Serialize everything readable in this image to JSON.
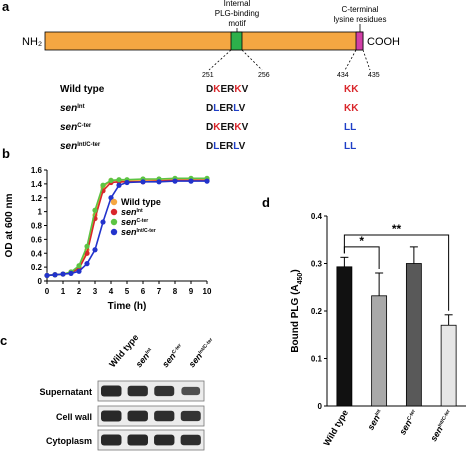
{
  "panels": {
    "a": "a",
    "b": "b",
    "c": "c",
    "d": "d"
  },
  "panel_a": {
    "nh2": "NH₂",
    "cooh": "COOH",
    "motif_line1": "Internal",
    "motif_line2": "PLG-binding",
    "motif_line3": "motif",
    "cter_line1": "C-terminal",
    "cter_line2": "lysine residues",
    "pos_251": "251",
    "pos_256": "256",
    "pos_434": "434",
    "pos_435": "435",
    "protein_color": "#f5a742",
    "motif_color": "#2db04b",
    "cter_color": "#d13fa6",
    "rows": [
      {
        "base": "Wild type",
        "sup": "",
        "seq": [
          [
            "D",
            "#111111"
          ],
          [
            "K",
            "#d9262b"
          ],
          [
            "E",
            "#111111"
          ],
          [
            "R",
            "#111111"
          ],
          [
            "K",
            "#d9262b"
          ],
          [
            "V",
            "#111111"
          ]
        ],
        "cter": [
          [
            "K",
            "#d9262b"
          ],
          [
            "K",
            "#d9262b"
          ]
        ]
      },
      {
        "base": "sen",
        "sup": "Int",
        "seq": [
          [
            "D",
            "#111111"
          ],
          [
            "L",
            "#1f3fc7"
          ],
          [
            "E",
            "#111111"
          ],
          [
            "R",
            "#111111"
          ],
          [
            "L",
            "#1f3fc7"
          ],
          [
            "V",
            "#111111"
          ]
        ],
        "cter": [
          [
            "K",
            "#d9262b"
          ],
          [
            "K",
            "#d9262b"
          ]
        ]
      },
      {
        "base": "sen",
        "sup": "C-ter",
        "seq": [
          [
            "D",
            "#111111"
          ],
          [
            "K",
            "#d9262b"
          ],
          [
            "E",
            "#111111"
          ],
          [
            "R",
            "#111111"
          ],
          [
            "K",
            "#d9262b"
          ],
          [
            "V",
            "#111111"
          ]
        ],
        "cter": [
          [
            "L",
            "#1f3fc7"
          ],
          [
            "L",
            "#1f3fc7"
          ]
        ]
      },
      {
        "base": "sen",
        "sup": "Int/C-ter",
        "seq": [
          [
            "D",
            "#111111"
          ],
          [
            "L",
            "#1f3fc7"
          ],
          [
            "E",
            "#111111"
          ],
          [
            "R",
            "#111111"
          ],
          [
            "L",
            "#1f3fc7"
          ],
          [
            "V",
            "#111111"
          ]
        ],
        "cter": [
          [
            "L",
            "#1f3fc7"
          ],
          [
            "L",
            "#1f3fc7"
          ]
        ]
      }
    ]
  },
  "chart_data": [
    {
      "type": "line",
      "xlabel": "Time (h)",
      "ylabel": "OD at 600 nm",
      "xlim": [
        0,
        10
      ],
      "ylim": [
        0,
        1.6
      ],
      "xticks": [
        0,
        1,
        2,
        3,
        4,
        5,
        6,
        7,
        8,
        9,
        10
      ],
      "yticks": [
        0,
        0.2,
        0.4,
        0.6,
        0.8,
        1.0,
        1.2,
        1.4,
        1.6
      ],
      "ytick_labels": [
        "0",
        "0.2",
        "0.4",
        "0.6",
        "0.8",
        "1",
        "1.2",
        "1.4",
        "1.6"
      ],
      "legend": "center-right",
      "series": [
        {
          "base": "Wild type",
          "sup": "",
          "color": "#f5a742",
          "x": [
            0,
            0.5,
            1,
            1.5,
            2,
            2.5,
            3,
            3.5,
            4,
            4.5,
            5,
            6,
            7,
            8,
            9,
            10
          ],
          "y": [
            0.08,
            0.09,
            0.1,
            0.13,
            0.2,
            0.45,
            0.95,
            1.35,
            1.45,
            1.45,
            1.45,
            1.45,
            1.46,
            1.47,
            1.47,
            1.47
          ]
        },
        {
          "base": "sen",
          "sup": "Int",
          "color": "#d9262b",
          "x": [
            0,
            0.5,
            1,
            1.5,
            2,
            2.5,
            3,
            3.5,
            4,
            4.5,
            5,
            6,
            7,
            8,
            9,
            10
          ],
          "y": [
            0.08,
            0.09,
            0.1,
            0.12,
            0.18,
            0.4,
            0.9,
            1.3,
            1.42,
            1.43,
            1.43,
            1.43,
            1.44,
            1.45,
            1.45,
            1.45
          ]
        },
        {
          "base": "sen",
          "sup": "C-ter",
          "color": "#5cc443",
          "x": [
            0,
            0.5,
            1,
            1.5,
            2,
            2.5,
            3,
            3.5,
            4,
            4.5,
            5,
            6,
            7,
            8,
            9,
            10
          ],
          "y": [
            0.08,
            0.09,
            0.1,
            0.13,
            0.22,
            0.5,
            1.02,
            1.38,
            1.45,
            1.46,
            1.46,
            1.47,
            1.47,
            1.48,
            1.48,
            1.48
          ]
        },
        {
          "base": "sen",
          "sup": "Int/C-ter",
          "color": "#2233cc",
          "x": [
            0,
            0.5,
            1,
            1.5,
            2,
            2.5,
            3,
            3.5,
            4,
            4.5,
            5,
            6,
            7,
            8,
            9,
            10
          ],
          "y": [
            0.08,
            0.09,
            0.1,
            0.11,
            0.14,
            0.25,
            0.45,
            0.85,
            1.2,
            1.38,
            1.42,
            1.43,
            1.43,
            1.44,
            1.44,
            1.44
          ]
        }
      ]
    },
    {
      "type": "bar",
      "ylabel": "Bound PLG (A",
      "ylabel_sub": "450",
      "ylabel_end": ")",
      "ylim": [
        0,
        0.4
      ],
      "yticks": [
        0,
        0.1,
        0.2,
        0.3,
        0.4
      ],
      "ytick_labels": [
        "0",
        "0.1",
        "0.2",
        "0.3",
        "0.4"
      ],
      "categories": [
        {
          "base": "Wild type",
          "sup": ""
        },
        {
          "base": "sen",
          "sup": "Int"
        },
        {
          "base": "sen",
          "sup": "C-ter"
        },
        {
          "base": "sen",
          "sup": "Int/C-ter"
        }
      ],
      "values": [
        0.293,
        0.232,
        0.3,
        0.17
      ],
      "errors": [
        0.02,
        0.048,
        0.035,
        0.022
      ],
      "colors": [
        "#111111",
        "#a9a9a9",
        "#595959",
        "#e6e6e6"
      ],
      "annotations": [
        {
          "from": 0,
          "to": 1,
          "label": "*",
          "y": 0.335
        },
        {
          "from": 0,
          "to": 3,
          "label": "**",
          "y": 0.36
        }
      ]
    }
  ],
  "panel_c": {
    "rows": [
      "Supernatant",
      "Cell wall",
      "Cytoplasm"
    ],
    "lanes": [
      {
        "base": "Wild type",
        "sup": ""
      },
      {
        "base": "sen",
        "sup": "Int"
      },
      {
        "base": "sen",
        "sup": "C-ter"
      },
      {
        "base": "sen",
        "sup": "Int/C-ter"
      }
    ],
    "intensities": [
      [
        1.0,
        0.95,
        0.9,
        0.65
      ],
      [
        1.0,
        0.98,
        0.95,
        0.9
      ],
      [
        1.0,
        1.0,
        0.98,
        0.95
      ]
    ]
  }
}
